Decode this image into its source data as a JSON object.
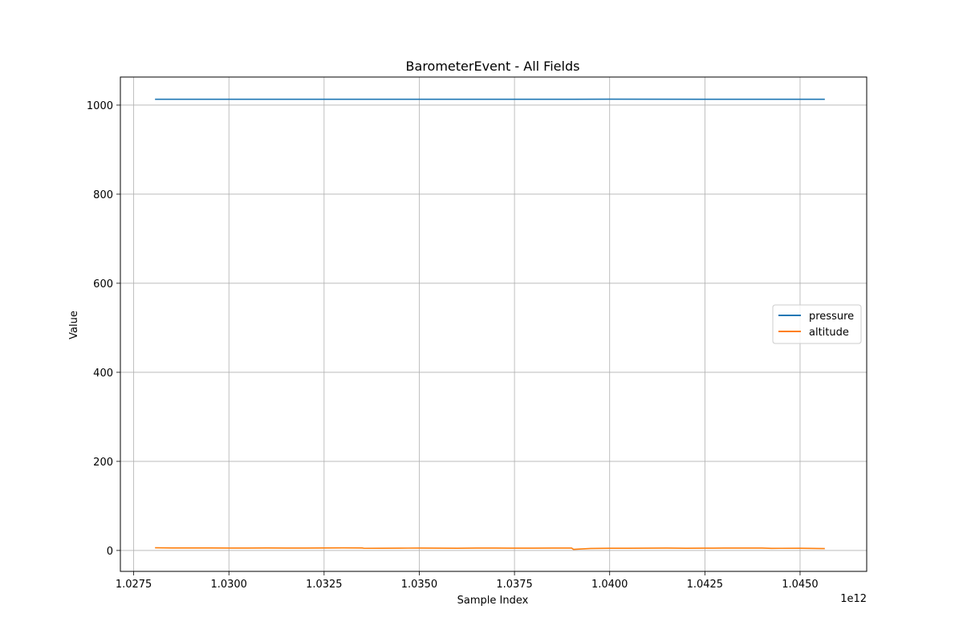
{
  "chart_data": {
    "type": "line",
    "title": "BarometerEvent - All Fields",
    "xlabel": "Sample Index",
    "ylabel": "Value",
    "x_offset_label": "1e12",
    "xlim": [
      1.02715,
      1.04675
    ],
    "ylim": [
      -47,
      1063
    ],
    "x_ticks": [
      1.0275,
      1.03,
      1.0325,
      1.035,
      1.0375,
      1.04,
      1.0425,
      1.045
    ],
    "x_tick_labels": [
      "1.0275",
      "1.0300",
      "1.0325",
      "1.0350",
      "1.0375",
      "1.0400",
      "1.0425",
      "1.0450"
    ],
    "y_ticks": [
      0,
      200,
      400,
      600,
      800,
      1000
    ],
    "y_tick_labels": [
      "0",
      "200",
      "400",
      "600",
      "800",
      "1000"
    ],
    "grid": true,
    "legend_position": "center-right",
    "series": [
      {
        "name": "pressure",
        "color": "#1f77b4",
        "x": [
          1.02806,
          1.03,
          1.0325,
          1.035,
          1.0375,
          1.03905,
          1.04,
          1.0425,
          1.045,
          1.04565
        ],
        "y": [
          1013.2,
          1013.2,
          1013.2,
          1013.2,
          1013.2,
          1013.2,
          1013.3,
          1013.2,
          1013.2,
          1013.2
        ]
      },
      {
        "name": "altitude",
        "color": "#ff7f0e",
        "x": [
          1.02806,
          1.0285,
          1.029,
          1.0295,
          1.03,
          1.0305,
          1.031,
          1.0315,
          1.032,
          1.0325,
          1.033,
          1.0335,
          1.03355,
          1.034,
          1.0345,
          1.035,
          1.0355,
          1.036,
          1.0365,
          1.037,
          1.0375,
          1.038,
          1.0385,
          1.039,
          1.03905,
          1.0395,
          1.04,
          1.0405,
          1.041,
          1.0415,
          1.042,
          1.0425,
          1.043,
          1.0435,
          1.044,
          1.04425,
          1.0445,
          1.045,
          1.04565
        ],
        "y": [
          6.0,
          5.5,
          5.5,
          5.6,
          5.4,
          5.3,
          5.5,
          5.4,
          5.4,
          5.6,
          5.8,
          5.6,
          4.8,
          5.0,
          5.2,
          5.3,
          5.2,
          5.0,
          5.4,
          5.3,
          5.2,
          5.2,
          5.4,
          5.3,
          2.5,
          4.5,
          4.9,
          5.0,
          5.2,
          5.4,
          5.0,
          5.1,
          5.3,
          5.4,
          5.4,
          4.6,
          4.8,
          5.0,
          4.2
        ]
      }
    ]
  }
}
